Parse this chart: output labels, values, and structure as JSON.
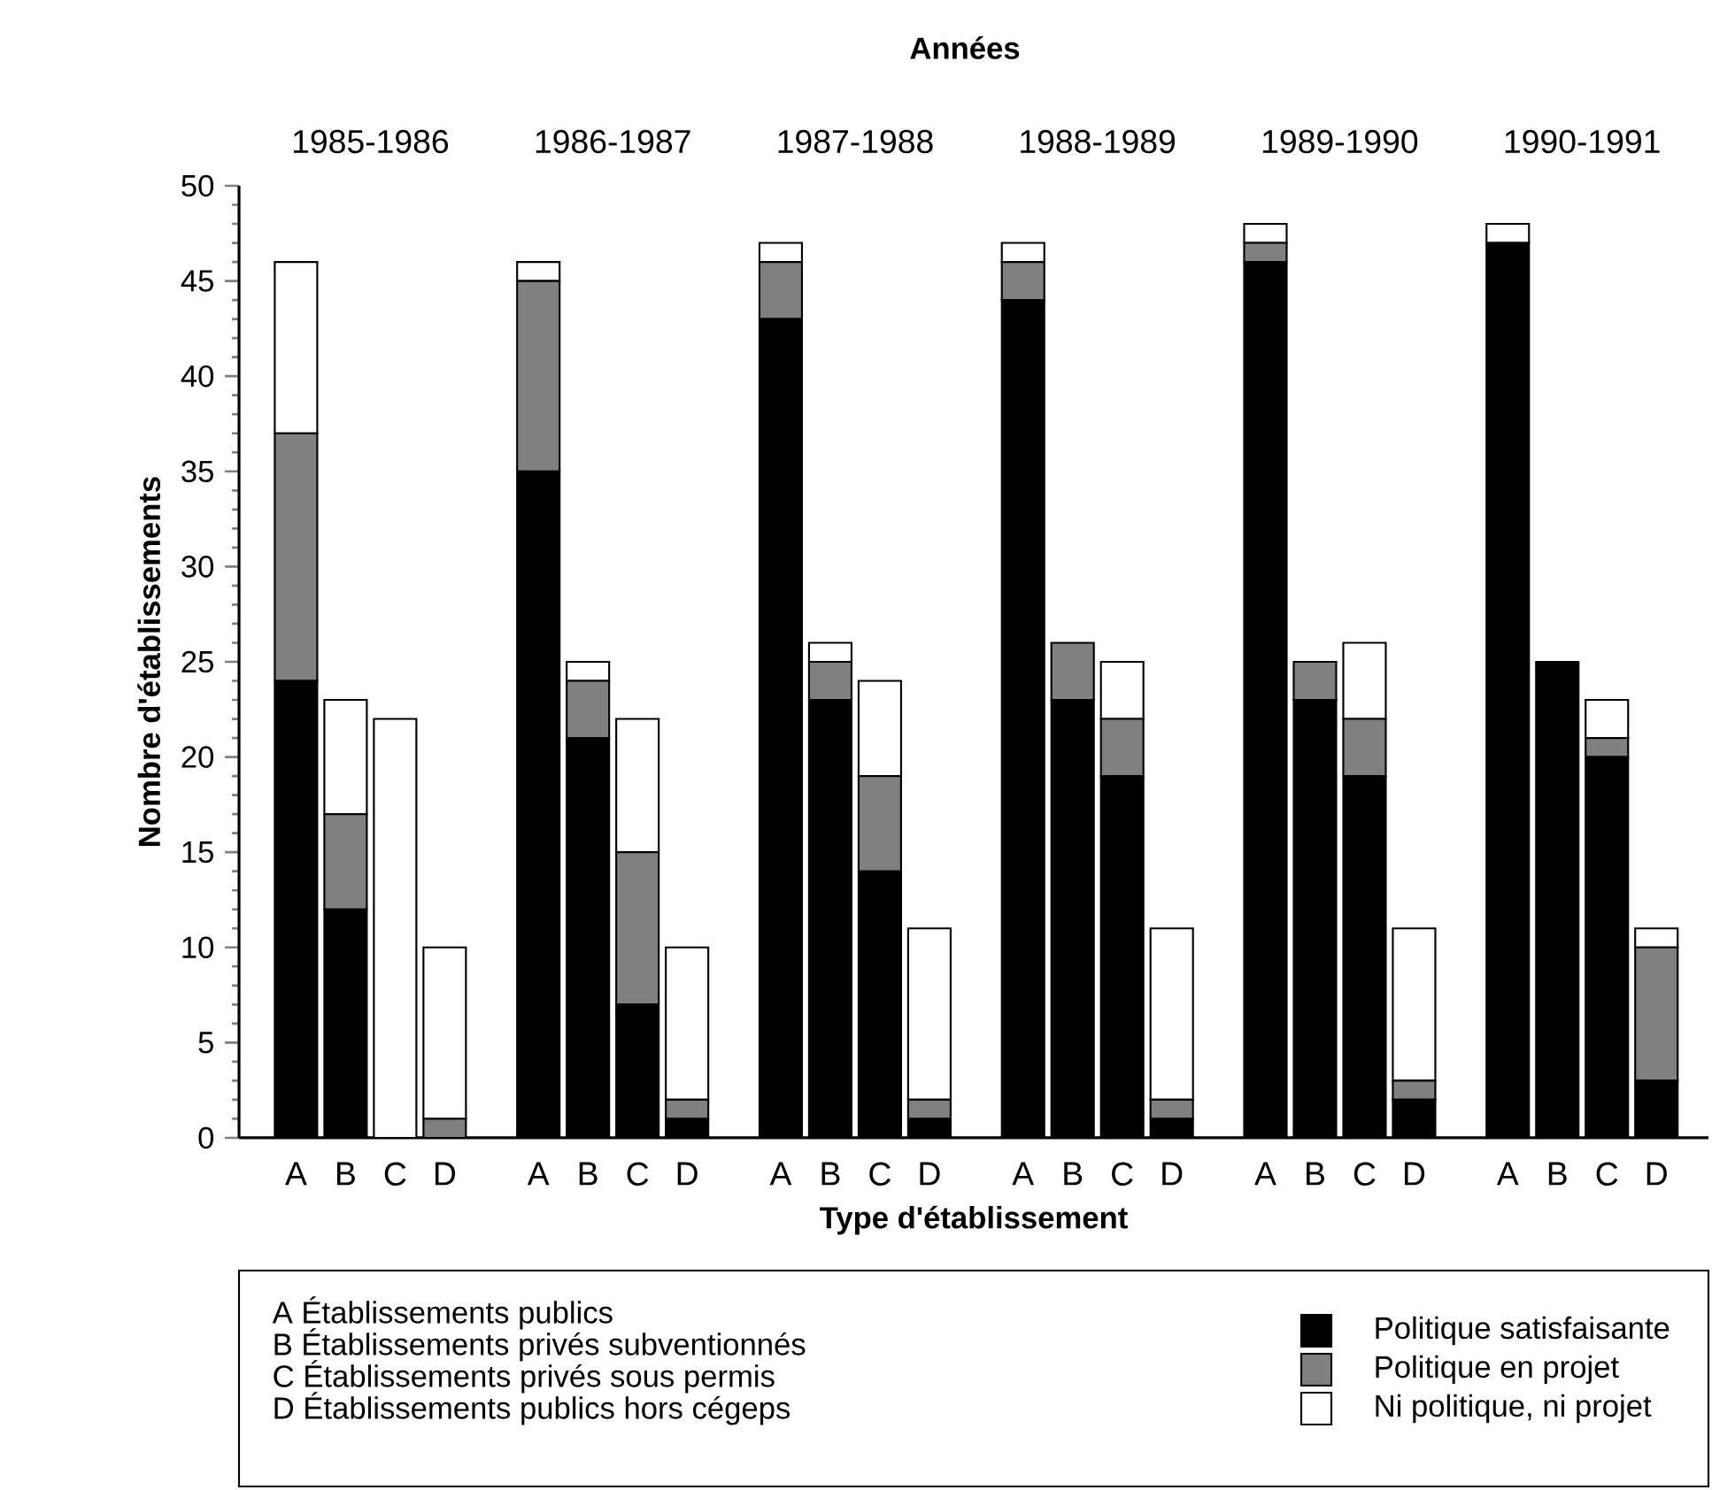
{
  "chart_data": {
    "type": "bar",
    "stacked": true,
    "title": "Années",
    "xlabel": "Type d'établissement",
    "ylabel": "Nombre d'établissements",
    "categories": [
      "A",
      "B",
      "C",
      "D",
      "A",
      "B",
      "C",
      "D",
      "A",
      "B",
      "C",
      "D",
      "A",
      "B",
      "C",
      "D",
      "A",
      "B",
      "C",
      "D",
      "A",
      "B",
      "C",
      "D"
    ],
    "series": [
      {
        "name": "Politique satisfaisante",
        "color": "#000000",
        "values": [
          24,
          12,
          0,
          0,
          35,
          21,
          7,
          1,
          43,
          23,
          14,
          1,
          44,
          23,
          19,
          1,
          46,
          23,
          19,
          2,
          47,
          25,
          20,
          3
        ]
      },
      {
        "name": "Politique en projet",
        "color": "#808080",
        "values": [
          13,
          5,
          0,
          1,
          10,
          3,
          8,
          1,
          3,
          2,
          5,
          1,
          2,
          3,
          3,
          1,
          1,
          2,
          3,
          1,
          0,
          0,
          1,
          7
        ]
      },
      {
        "name": "Ni politique, ni projet",
        "color": "#ffffff",
        "values": [
          9,
          6,
          22,
          9,
          1,
          1,
          7,
          8,
          1,
          1,
          5,
          9,
          1,
          0,
          3,
          9,
          1,
          0,
          4,
          8,
          1,
          0,
          2,
          1
        ]
      }
    ],
    "ylim": [
      0,
      50
    ],
    "yticks": [
      0,
      5,
      10,
      15,
      20,
      25,
      30,
      35,
      40,
      45,
      50
    ],
    "grid": false,
    "legend": "bottom",
    "annotations": [
      "1985-1986",
      "1986-1987",
      "1987-1988",
      "1988-1989",
      "1989-1990",
      "1990-1991",
      "A Établissements publics",
      "B Établissements privés subventionnés",
      "C Établissements privés sous permis",
      "D Établissements publics hors cégeps"
    ]
  }
}
